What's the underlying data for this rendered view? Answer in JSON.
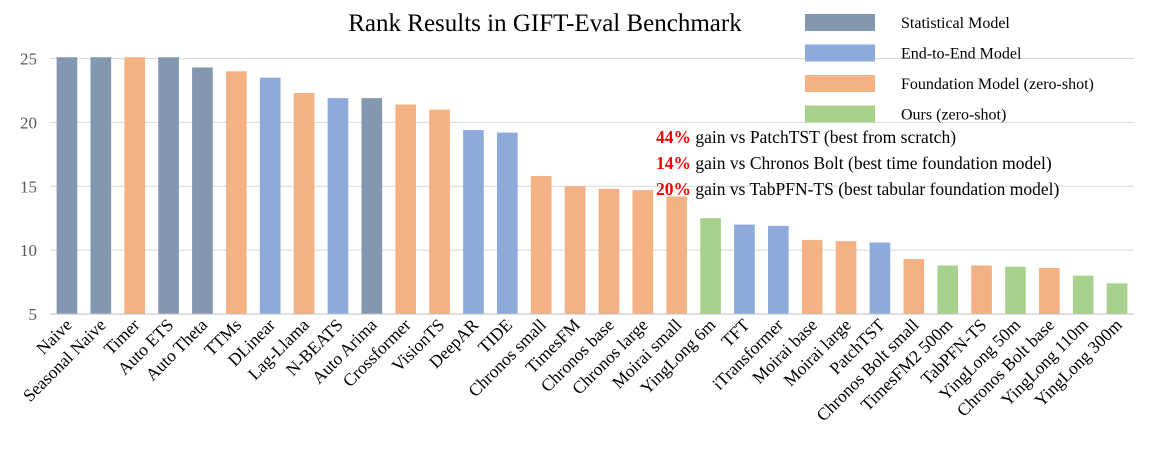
{
  "chart_data": {
    "type": "bar",
    "title": "Rank Results in GIFT-Eval Benchmark",
    "xlabel": "",
    "ylabel": "",
    "ylim": [
      5,
      25
    ],
    "yticks": [
      5,
      10,
      15,
      20,
      25
    ],
    "grid": true,
    "legend_position": "top-right",
    "categories": [
      "Naive",
      "Seasonal Naive",
      "Timer",
      "Auto ETS",
      "Auto Theta",
      "TTMs",
      "DLinear",
      "Lag-Llama",
      "N-BEATS",
      "Auto Arima",
      "Crossformer",
      "VisionTS",
      "DeepAR",
      "TIDE",
      "Chronos small",
      "TimesFM",
      "Chronos base",
      "Chronos large",
      "Moirai small",
      "YingLong 6m",
      "TFT",
      "iTransformer",
      "Moirai base",
      "Moirai large",
      "PatchTST",
      "Chronos Bolt small",
      "TimesFM2 500m",
      "TabPFN-TS",
      "YingLong 50m",
      "Chronos Bolt base",
      "YingLong 110m",
      "YingLong 300m"
    ],
    "values": [
      25.1,
      25.1,
      25.1,
      25.1,
      24.3,
      24.0,
      23.5,
      22.3,
      21.9,
      21.9,
      21.4,
      21.0,
      19.4,
      19.2,
      15.8,
      15.0,
      14.8,
      14.7,
      14.2,
      12.5,
      12.0,
      11.9,
      10.8,
      10.7,
      10.6,
      9.3,
      8.8,
      8.8,
      8.7,
      8.6,
      8.0,
      7.4
    ],
    "groups": [
      "statistical",
      "statistical",
      "foundation",
      "statistical",
      "statistical",
      "foundation",
      "e2e",
      "foundation",
      "e2e",
      "statistical",
      "foundation",
      "foundation",
      "e2e",
      "e2e",
      "foundation",
      "foundation",
      "foundation",
      "foundation",
      "foundation",
      "ours",
      "e2e",
      "e2e",
      "foundation",
      "foundation",
      "e2e",
      "foundation",
      "ours",
      "foundation",
      "ours",
      "foundation",
      "ours",
      "ours"
    ],
    "legend": [
      {
        "key": "statistical",
        "label": "Statistical Model",
        "color": "#8497b0"
      },
      {
        "key": "e2e",
        "label": "End-to-End Model",
        "color": "#8eaadb"
      },
      {
        "key": "foundation",
        "label": "Foundation Model (zero-shot)",
        "color": "#f4b183"
      },
      {
        "key": "ours",
        "label": "Ours (zero-shot)",
        "color": "#a9d18e"
      }
    ],
    "annotations": [
      {
        "highlight": "44%",
        "text": " gain vs PatchTST (best from scratch)"
      },
      {
        "highlight": "14%",
        "text": " gain vs Chronos Bolt (best time foundation model)"
      },
      {
        "highlight": "20%",
        "text": " gain vs TabPFN-TS (best tabular foundation model)"
      }
    ]
  }
}
